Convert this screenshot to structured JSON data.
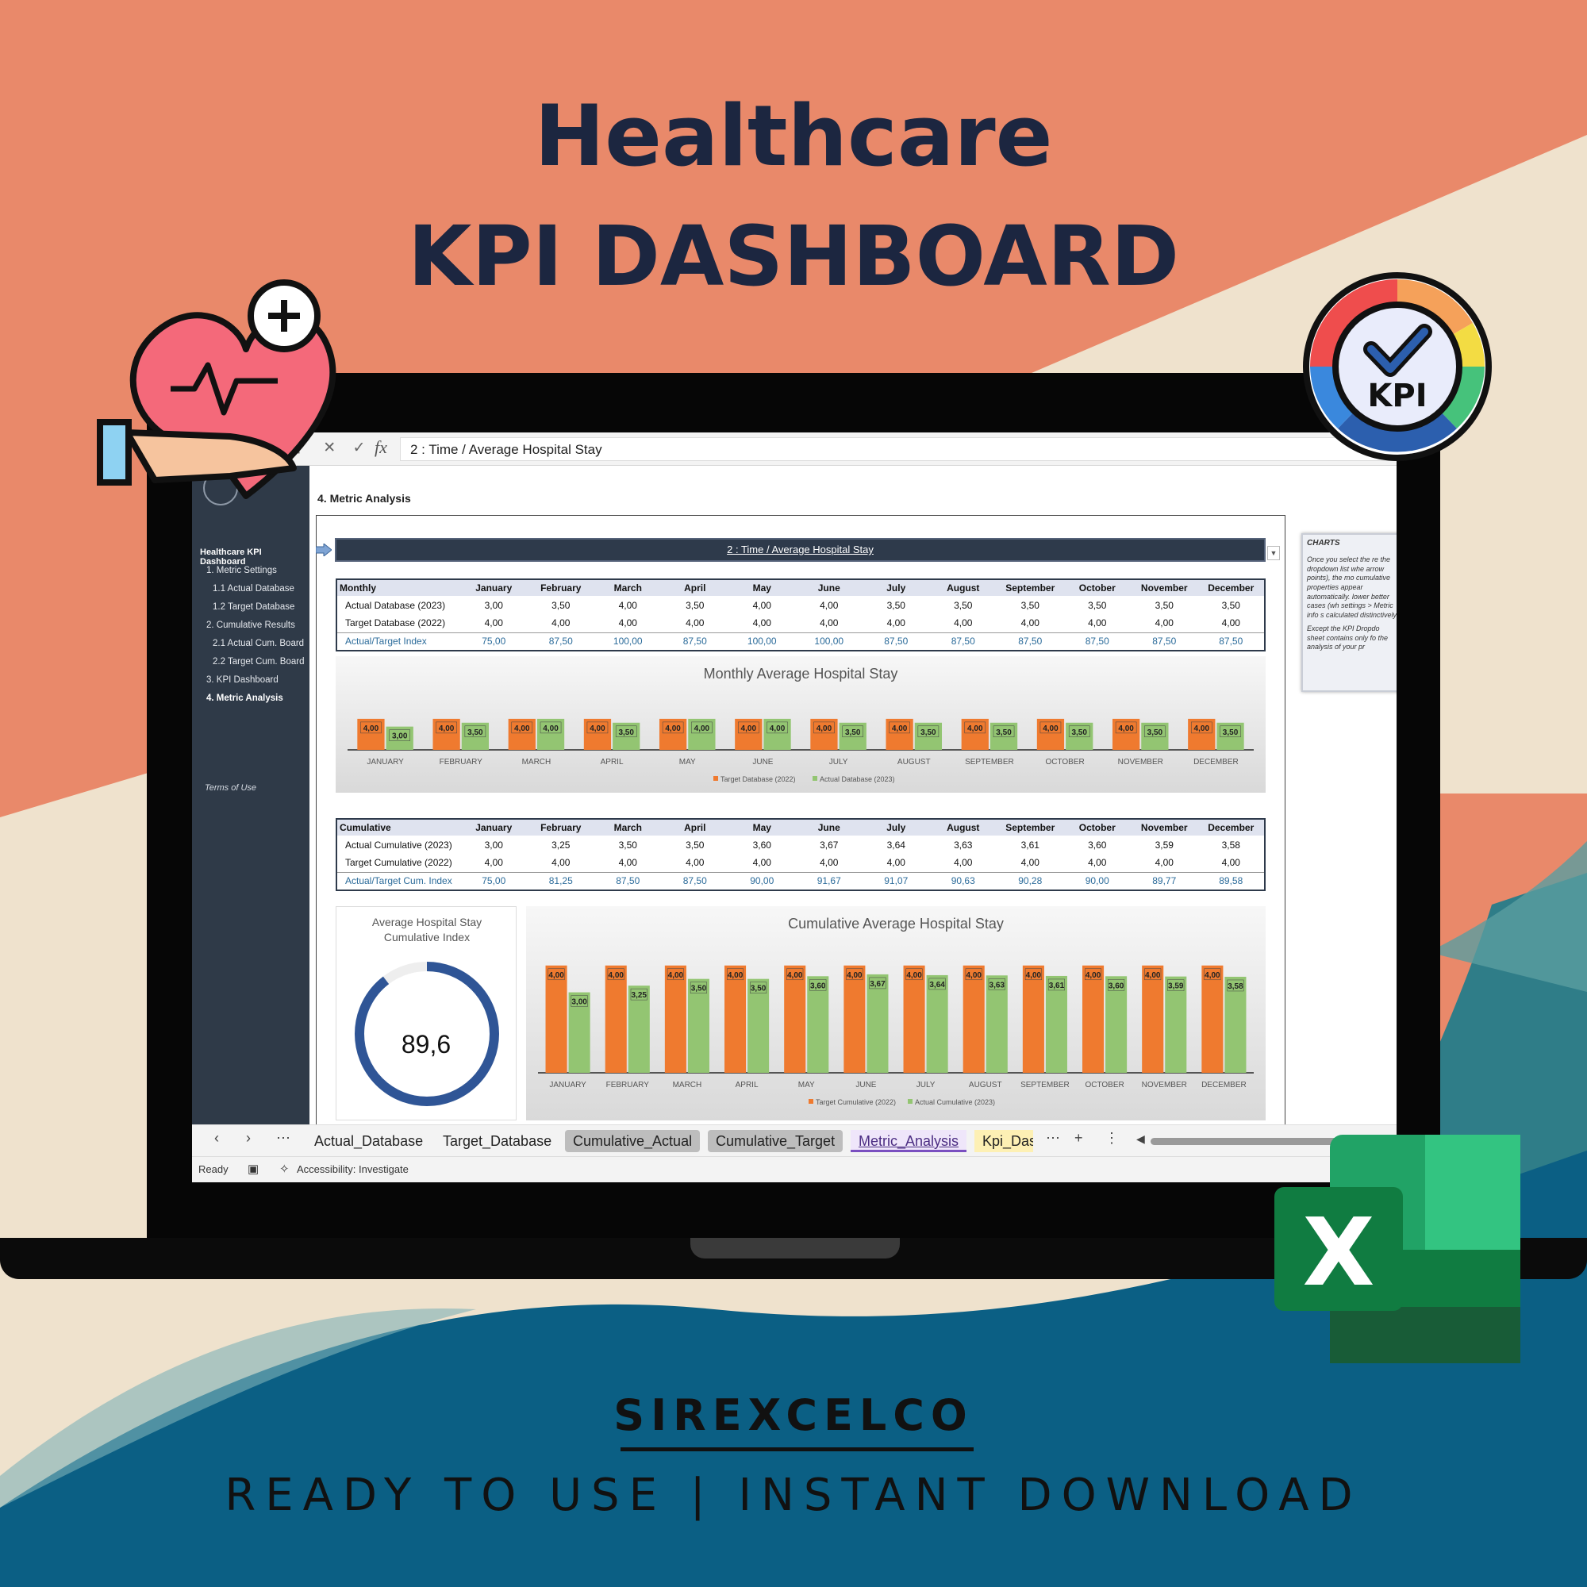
{
  "promo": {
    "title_line1": "Healthcare",
    "title_line2": "KPI DASHBOARD",
    "brand": "SIREXCELCO",
    "tagline": "READY TO USE | INSTANT DOWNLOAD",
    "kpi_badge": "KPI",
    "excel_letter": "X"
  },
  "colors": {
    "background_coral": "#e9896a",
    "background_cream": "#efe2cd",
    "background_teal": "#0b5f84",
    "title_navy": "#1c2640",
    "sidebar": "#2f3a48",
    "target_orange": "#ef7a2f",
    "actual_green": "#93c572",
    "gauge_blue": "#2f5596"
  },
  "icons": [
    "heart-hand-plus-icon",
    "kpi-gauge-check-icon",
    "excel-logo-icon"
  ],
  "excel": {
    "formula_bar": {
      "value": "2 : Time  / Average Hospital Stay",
      "fx": "fx"
    },
    "sidebar": {
      "title": "Healthcare KPI Dashboard",
      "items": [
        {
          "label": "1. Metric Settings"
        },
        {
          "label": "1.1 Actual Database"
        },
        {
          "label": "1.2 Target Database"
        },
        {
          "label": "2. Cumulative Results"
        },
        {
          "label": "2.1 Actual Cum. Board"
        },
        {
          "label": "2.2 Target Cum. Board"
        },
        {
          "label": "3. KPI Dashboard"
        },
        {
          "label": "4. Metric Analysis"
        }
      ],
      "terms": "Terms of Use"
    },
    "main": {
      "heading": "4. Metric Analysis",
      "selector": "2 : Time  / Average Hospital Stay"
    },
    "charts_note": {
      "title": "CHARTS",
      "bullets": [
        "Once you select the re the dropdown list whe arrow points), the mo cumulative properties appear automatically. lower better cases (wh settings > Metric info s calculated distinctively",
        "Except the KPI Dropdo sheet contains only fo the analysis of your pr"
      ]
    },
    "monthly_table": {
      "header": "Monthly",
      "months": [
        "January",
        "February",
        "March",
        "April",
        "May",
        "June",
        "July",
        "August",
        "September",
        "October",
        "November",
        "December"
      ],
      "rows": [
        {
          "label": "Actual Database (2023)",
          "values": [
            "3,00",
            "3,50",
            "4,00",
            "3,50",
            "4,00",
            "4,00",
            "3,50",
            "3,50",
            "3,50",
            "3,50",
            "3,50",
            "3,50"
          ]
        },
        {
          "label": "Target Database (2022)",
          "values": [
            "4,00",
            "4,00",
            "4,00",
            "4,00",
            "4,00",
            "4,00",
            "4,00",
            "4,00",
            "4,00",
            "4,00",
            "4,00",
            "4,00"
          ]
        },
        {
          "label": "Actual/Target Index",
          "values": [
            "75,00",
            "87,50",
            "100,00",
            "87,50",
            "100,00",
            "100,00",
            "87,50",
            "87,50",
            "87,50",
            "87,50",
            "87,50",
            "87,50"
          ]
        }
      ]
    },
    "cumulative_table": {
      "header": "Cumulative",
      "months": [
        "January",
        "February",
        "March",
        "April",
        "May",
        "June",
        "July",
        "August",
        "September",
        "October",
        "November",
        "December"
      ],
      "rows": [
        {
          "label": "Actual Cumulative (2023)",
          "values": [
            "3,00",
            "3,25",
            "3,50",
            "3,50",
            "3,60",
            "3,67",
            "3,64",
            "3,63",
            "3,61",
            "3,60",
            "3,59",
            "3,58"
          ]
        },
        {
          "label": "Target Cumulative (2022)",
          "values": [
            "4,00",
            "4,00",
            "4,00",
            "4,00",
            "4,00",
            "4,00",
            "4,00",
            "4,00",
            "4,00",
            "4,00",
            "4,00",
            "4,00"
          ]
        },
        {
          "label": "Actual/Target Cum. Index",
          "values": [
            "75,00",
            "81,25",
            "87,50",
            "87,50",
            "90,00",
            "91,67",
            "91,07",
            "90,63",
            "90,28",
            "90,00",
            "89,77",
            "89,58"
          ]
        }
      ]
    },
    "gauge": {
      "title": "Average Hospital Stay\nCumulative Index",
      "value": "89,6",
      "fraction": 0.896
    },
    "tabs": [
      {
        "label": "Actual_Database"
      },
      {
        "label": "Target_Database"
      },
      {
        "label": "Cumulative_Actual"
      },
      {
        "label": "Cumulative_Target"
      },
      {
        "label": "Metric_Analysis"
      },
      {
        "label": "Kpi_Dash"
      }
    ],
    "status": {
      "ready": "Ready",
      "accessibility": "Accessibility: Investigate"
    }
  },
  "chart_data": [
    {
      "type": "bar",
      "title": "Monthly Average Hospital Stay",
      "categories": [
        "JANUARY",
        "FEBRUARY",
        "MARCH",
        "APRIL",
        "MAY",
        "JUNE",
        "JULY",
        "AUGUST",
        "SEPTEMBER",
        "OCTOBER",
        "NOVEMBER",
        "DECEMBER"
      ],
      "series": [
        {
          "name": "Target Database (2022)",
          "values": [
            4,
            4,
            4,
            4,
            4,
            4,
            4,
            4,
            4,
            4,
            4,
            4
          ],
          "labels": [
            "4,00",
            "4,00",
            "4,00",
            "4,00",
            "4,00",
            "4,00",
            "4,00",
            "4,00",
            "4,00",
            "4,00",
            "4,00",
            "4,00"
          ],
          "color": "#ef7a2f"
        },
        {
          "name": "Actual Database (2023)",
          "values": [
            3,
            3.5,
            4,
            3.5,
            4,
            4,
            3.5,
            3.5,
            3.5,
            3.5,
            3.5,
            3.5
          ],
          "labels": [
            "3,00",
            "3,50",
            "4,00",
            "3,50",
            "4,00",
            "4,00",
            "3,50",
            "3,50",
            "3,50",
            "3,50",
            "3,50",
            "3,50"
          ],
          "color": "#93c572"
        }
      ],
      "legend": "bottom"
    },
    {
      "type": "bar",
      "title": "Cumulative Average Hospital Stay",
      "categories": [
        "JANUARY",
        "FEBRUARY",
        "MARCH",
        "APRIL",
        "MAY",
        "JUNE",
        "JULY",
        "AUGUST",
        "SEPTEMBER",
        "OCTOBER",
        "NOVEMBER",
        "DECEMBER"
      ],
      "series": [
        {
          "name": "Target Cumulative (2022)",
          "values": [
            4,
            4,
            4,
            4,
            4,
            4,
            4,
            4,
            4,
            4,
            4,
            4
          ],
          "labels": [
            "4,00",
            "4,00",
            "4,00",
            "4,00",
            "4,00",
            "4,00",
            "4,00",
            "4,00",
            "4,00",
            "4,00",
            "4,00",
            "4,00"
          ],
          "color": "#ef7a2f"
        },
        {
          "name": "Actual Cumulative (2023)",
          "values": [
            3,
            3.25,
            3.5,
            3.5,
            3.6,
            3.67,
            3.64,
            3.63,
            3.61,
            3.6,
            3.59,
            3.58
          ],
          "labels": [
            "3,00",
            "3,25",
            "3,50",
            "3,50",
            "3,60",
            "3,67",
            "3,64",
            "3,63",
            "3,61",
            "3,60",
            "3,59",
            "3,58"
          ],
          "color": "#93c572"
        }
      ],
      "legend": "bottom"
    }
  ]
}
